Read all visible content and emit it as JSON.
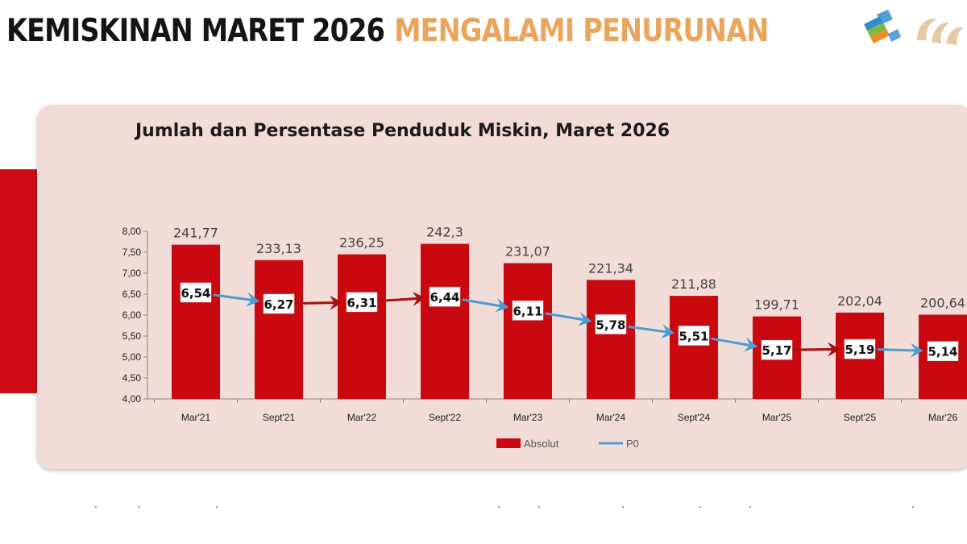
{
  "header": {
    "title_part1": "KEMISKINAN MARET 2026",
    "title_part2": "MENGALAMI PENURUNAN"
  },
  "colors": {
    "bar": "#c9080f",
    "line": "#4d9bd1",
    "highlight_arrow": "#a50f14",
    "panel": "#f2dcd8",
    "accent": "#eaa55c"
  },
  "logo": {
    "icon": "bps-logo-icon"
  },
  "chart_data": {
    "type": "bar",
    "title": "Jumlah dan Persentase Penduduk Miskin, Maret 2026",
    "categories": [
      "Mar'21",
      "Sept'21",
      "Mar'22",
      "Sept'22",
      "Mar'23",
      "Mar'24",
      "Sept'24",
      "Mar'25",
      "Sept'25",
      "Mar'26"
    ],
    "series": [
      {
        "name": "Absolut",
        "type": "bar",
        "value_labels": [
          "241,77",
          "233,13",
          "236,25",
          "242,3",
          "231,07",
          "221,34",
          "211,88",
          "199,71",
          "202,04",
          "200,64"
        ],
        "values": [
          241.77,
          233.13,
          236.25,
          242.3,
          231.07,
          221.34,
          211.88,
          199.71,
          202.04,
          200.64
        ]
      },
      {
        "name": "P0",
        "type": "line",
        "value_labels": [
          "6,54",
          "6,27",
          "6,31",
          "6,44",
          "6,11",
          "5,78",
          "5,51",
          "5,17",
          "5,19",
          "5,14"
        ],
        "values": [
          6.54,
          6.27,
          6.31,
          6.44,
          6.11,
          5.78,
          5.51,
          5.17,
          5.19,
          5.14
        ]
      }
    ],
    "y_axis": {
      "min": 4.0,
      "max": 8.0,
      "ticks": [
        "4,00",
        "4,50",
        "5,00",
        "5,50",
        "6,00",
        "6,50",
        "7,00",
        "7,50",
        "8,00"
      ]
    },
    "bar_heights_in_axis_units": [
      7.68,
      7.31,
      7.45,
      7.7,
      7.24,
      6.84,
      6.46,
      5.97,
      6.06,
      6.01
    ],
    "legend": {
      "position": "bottom",
      "entries": [
        "Absolut",
        "P0"
      ]
    },
    "grid": false
  }
}
